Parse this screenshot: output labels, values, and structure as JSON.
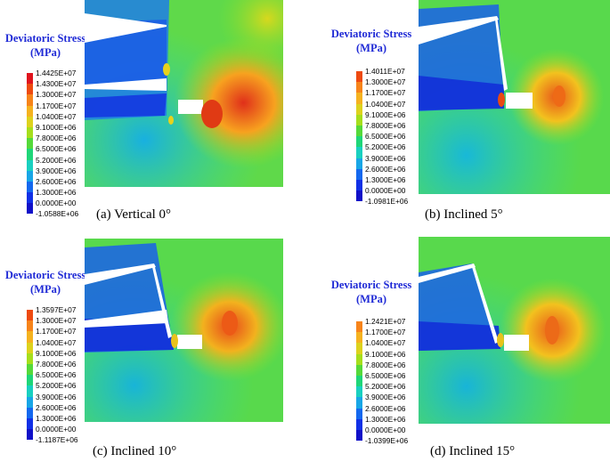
{
  "legend_colors": [
    "#e0141e",
    "#ee4a10",
    "#f7841a",
    "#f5b21f",
    "#ddd21d",
    "#a6de1c",
    "#55d93a",
    "#1fd678",
    "#19d0c0",
    "#18a6e6",
    "#1468ef",
    "#1030e6",
    "#1010c8"
  ],
  "panels": [
    {
      "legend_title_line1": "Deviatoric Stress",
      "legend_title_line2": "(MPa)",
      "legend_values": [
        "1.4425E+07",
        "1.4300E+07",
        "1.3000E+07",
        "1.1700E+07",
        "1.0400E+07",
        "9.1000E+06",
        "7.8000E+06",
        "6.5000E+06",
        "5.2000E+06",
        "3.9000E+06",
        "2.6000E+06",
        "1.3000E+06",
        "0.0000E+00",
        "-1.0588E+06"
      ],
      "caption": "(a) Vertical 0°"
    },
    {
      "legend_title_line1": "Deviatoric Stress",
      "legend_title_line2": "(MPa)",
      "legend_values": [
        "1.4011E+07",
        "1.3000E+07",
        "1.1700E+07",
        "1.0400E+07",
        "9.1000E+06",
        "7.8000E+06",
        "6.5000E+06",
        "5.2000E+06",
        "3.9000E+06",
        "2.6000E+06",
        "1.3000E+06",
        "0.0000E+00",
        "-1.0981E+06"
      ],
      "caption": "(b) Inclined 5°"
    },
    {
      "legend_title_line1": "Deviatoric Stress",
      "legend_title_line2": "(MPa)",
      "legend_values": [
        "1.3597E+07",
        "1.3000E+07",
        "1.1700E+07",
        "1.0400E+07",
        "9.1000E+06",
        "7.8000E+06",
        "6.5000E+06",
        "5.2000E+06",
        "3.9000E+06",
        "2.6000E+06",
        "1.3000E+06",
        "0.0000E+00",
        "-1.1187E+06"
      ],
      "caption": "(c) Inclined 10°"
    },
    {
      "legend_title_line1": "Deviatoric Stress",
      "legend_title_line2": "(MPa)",
      "legend_values": [
        "1.2421E+07",
        "1.1700E+07",
        "1.0400E+07",
        "9.1000E+06",
        "7.8000E+06",
        "6.5000E+06",
        "5.2000E+06",
        "3.9000E+06",
        "2.6000E+06",
        "1.3000E+06",
        "0.0000E+00",
        "-1.0399E+06"
      ],
      "caption": "(d) Inclined 15°"
    }
  ]
}
